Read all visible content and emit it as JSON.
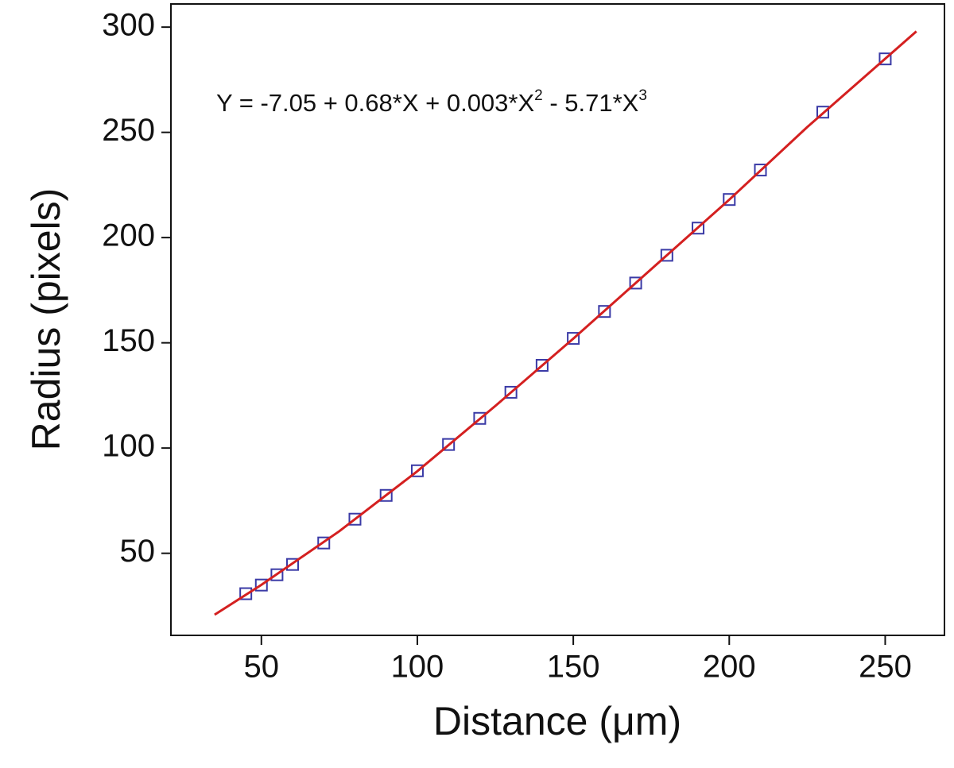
{
  "chart_data": {
    "type": "scatter",
    "xlabel": "Distance (μm)",
    "ylabel": "Radius (pixels)",
    "annotation": {
      "parts": [
        "Y = -7.05 + 0.68*X + 0.003*X",
        "2",
        " - 5.71*X",
        "3"
      ]
    },
    "xlim": [
      21,
      269
    ],
    "ylim": [
      11,
      311
    ],
    "xticks": [
      50,
      100,
      150,
      200,
      250
    ],
    "yticks": [
      50,
      100,
      150,
      200,
      250,
      300
    ],
    "series": [
      {
        "type": "scatter",
        "color": "#3a3aa6",
        "x": [
          45,
          50,
          55,
          60,
          70,
          80,
          90,
          100,
          110,
          120,
          130,
          140,
          150,
          160,
          170,
          180,
          190,
          200,
          210,
          230,
          250
        ],
        "values": [
          30.8,
          34.9,
          39.8,
          44.7,
          54.9,
          66.2,
          77.5,
          89.2,
          101.7,
          114.1,
          126.5,
          139.3,
          152.1,
          164.9,
          178.4,
          191.6,
          204.5,
          218.1,
          232.1,
          259.6,
          284.9
        ]
      },
      {
        "type": "line",
        "color": "#d42020",
        "x": [
          35,
          50,
          75,
          100,
          125,
          150,
          175,
          200,
          225,
          260
        ],
        "values": [
          20.8,
          35,
          60.5,
          89,
          120,
          152,
          185,
          218,
          252.5,
          298
        ]
      }
    ]
  }
}
